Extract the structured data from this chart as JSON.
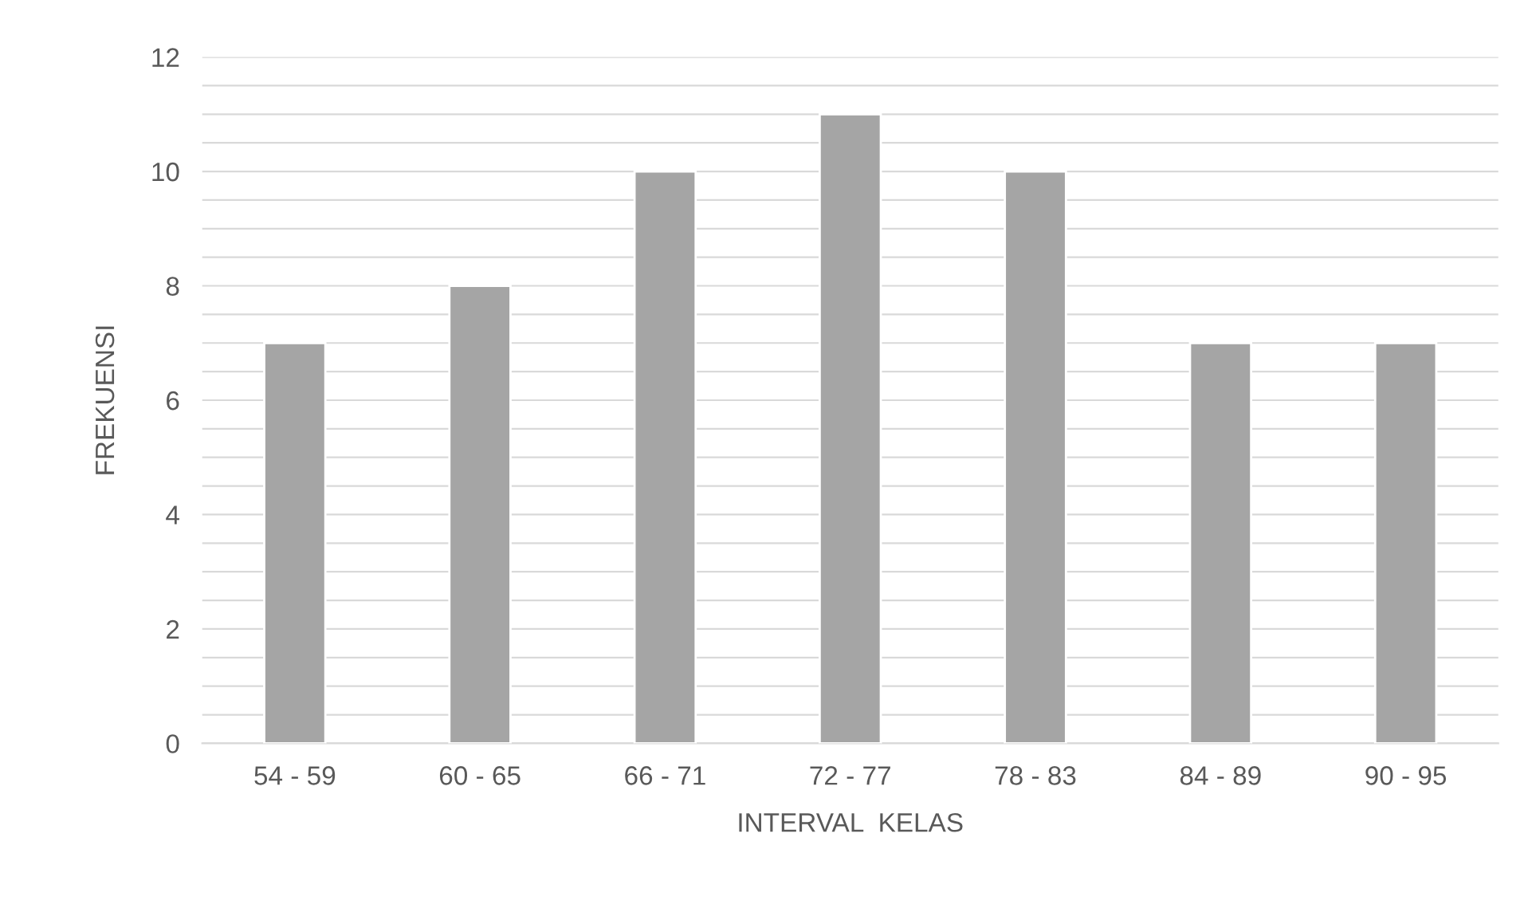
{
  "chart_data": {
    "type": "bar",
    "categories": [
      "54 - 59",
      "60 - 65",
      "66 - 71",
      "72 - 77",
      "78 - 83",
      "84 - 89",
      "90 - 95"
    ],
    "values": [
      7,
      8,
      10,
      11,
      10,
      7,
      7
    ],
    "color": "#a5a5a5",
    "xlabel": "INTERVAL  KELAS",
    "ylabel": "FREKUENSI",
    "ylim": [
      0,
      12
    ],
    "yticks": [
      0,
      {
        "value": 0.5,
        "label": null
      },
      {
        "value": 1,
        "label": null
      },
      {
        "value": 1.5,
        "label": null
      },
      2,
      {
        "value": 2.5,
        "label": null
      },
      {
        "value": 3,
        "label": null
      },
      {
        "value": 3.5,
        "label": null
      },
      4,
      {
        "value": 4.5,
        "label": null
      },
      {
        "value": 5,
        "label": null
      },
      {
        "value": 5.5,
        "label": null
      },
      6,
      {
        "value": 6.5,
        "label": null
      },
      {
        "value": 7,
        "label": null
      },
      {
        "value": 7.5,
        "label": null
      },
      8,
      {
        "value": 8.5,
        "label": null
      },
      {
        "value": 9,
        "label": null
      },
      {
        "value": 9.5,
        "label": null
      },
      10,
      {
        "value": 10.5,
        "label": null
      },
      {
        "value": 11,
        "label": null
      },
      {
        "value": 11.5,
        "label": null
      },
      12
    ],
    "grid": "y"
  }
}
